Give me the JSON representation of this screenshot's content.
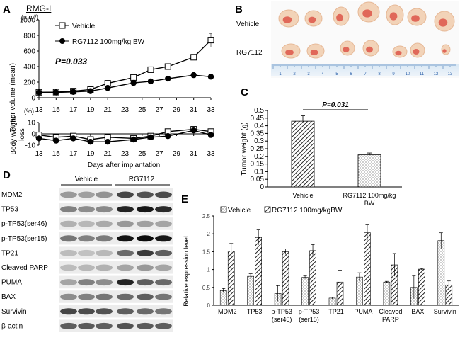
{
  "panels": {
    "a": "A",
    "b": "B",
    "c": "C",
    "d": "D",
    "e": "E"
  },
  "colors": {
    "line_dark": "#000000",
    "bar_gray": "#555555",
    "blot_bg": "#f2f2f2"
  },
  "panel_a": {
    "cell_line": "RMG-I",
    "units": "(mm³)",
    "ylabel": "Tumor volume (mean)",
    "legend_vehicle": "Vehicle",
    "legend_rg": "RG7112 100mg/kg BW",
    "pvalue": "P=0.033",
    "bw_units": "(%)",
    "bw_ylabel": "Body weight loss",
    "xlabel": "Days after implantation"
  },
  "panel_b": {
    "row_vehicle": "Vehicle",
    "row_rg": "RG7112",
    "ruler_numbers": [
      "1",
      "2",
      "3",
      "4",
      "5",
      "6",
      "7",
      "8",
      "9",
      "10",
      "11",
      "12",
      "13"
    ]
  },
  "panel_c": {
    "ylabel": "Tumor weight (g)",
    "pvalue": "P=0.031",
    "cat_vehicle": "Vehicle",
    "cat_rg_line1": "RG7112 100mg/kg",
    "cat_rg_line2": "BW"
  },
  "panel_d": {
    "group_vehicle": "Vehicle",
    "group_rg": "RG7112",
    "proteins": [
      "MDM2",
      "TP53",
      "p-TP53(ser46)",
      "p-TP53(ser15)",
      "TP21",
      "Cleaved PARP",
      "PUMA",
      "BAX",
      "Survivin",
      "β-actin"
    ]
  },
  "panel_e": {
    "ylabel": "Relative expression level",
    "legend_vehicle": "Vehicle",
    "legend_rg": "RG7112 100mg/kgBW",
    "xlabels": [
      [
        "MDM2"
      ],
      [
        "TP53"
      ],
      [
        "p-TP53",
        "(ser46)"
      ],
      [
        "p-TP53",
        "(ser15)"
      ],
      [
        "TP21"
      ],
      [
        "PUMA"
      ],
      [
        "Cleaved",
        "PARP"
      ],
      [
        "BAX"
      ],
      [
        "Survivin"
      ]
    ]
  },
  "chart_data": [
    {
      "id": "tumor-volume",
      "type": "line",
      "xlabel": "Days after implantation",
      "ylabel": "Tumor volume (mean) (mm³)",
      "x": [
        13,
        15,
        17,
        19,
        21,
        23,
        25,
        27,
        29,
        31,
        33
      ],
      "xticks": [
        13,
        15,
        17,
        19,
        21,
        23,
        25,
        27,
        29,
        31,
        33
      ],
      "xlim": [
        13,
        33
      ],
      "ylim": [
        0,
        1000
      ],
      "yticks": [
        0,
        200,
        400,
        600,
        800,
        1000
      ],
      "series": [
        {
          "name": "Vehicle",
          "marker": "open-square",
          "values": [
            70,
            72,
            85,
            105,
            185,
            260,
            360,
            400,
            520,
            740
          ],
          "x": [
            13,
            15,
            17,
            19,
            21,
            24,
            26,
            28,
            31,
            33
          ],
          "err": [
            10,
            10,
            12,
            15,
            20,
            25,
            30,
            30,
            35,
            85
          ]
        },
        {
          "name": "RG7112 100mg/kg BW",
          "marker": "filled-circle",
          "values": [
            68,
            68,
            75,
            85,
            125,
            190,
            210,
            245,
            290,
            270
          ],
          "x": [
            13,
            15,
            17,
            19,
            21,
            24,
            26,
            28,
            31,
            33
          ],
          "err": [
            8,
            8,
            8,
            10,
            12,
            12,
            12,
            12,
            15,
            18
          ]
        }
      ],
      "annotation": "P=0.033"
    },
    {
      "id": "body-weight-loss",
      "type": "line",
      "ylabel": "Body weight loss (%)",
      "x": [
        13,
        15,
        17,
        19,
        21,
        23,
        25,
        27,
        29,
        31,
        33
      ],
      "ylim": [
        -10,
        10
      ],
      "yticks": [
        -10,
        0,
        10
      ],
      "series": [
        {
          "name": "Vehicle",
          "marker": "open-square",
          "x": [
            13,
            15,
            17,
            19,
            21,
            24,
            26,
            28,
            31,
            33
          ],
          "values": [
            -1,
            -3,
            -2,
            -5,
            -3,
            -4,
            -2,
            2,
            4,
            2
          ],
          "err": [
            2,
            2,
            2,
            2,
            2,
            2,
            2,
            2,
            2,
            2
          ]
        },
        {
          "name": "RG7112 100mg/kg BW",
          "marker": "filled-circle",
          "x": [
            13,
            15,
            17,
            19,
            21,
            24,
            26,
            28,
            31,
            33
          ],
          "values": [
            -4,
            -6,
            -4,
            -7,
            -7,
            -5,
            -3,
            -2,
            3,
            -1
          ],
          "err": [
            2,
            2,
            2,
            2,
            2,
            2,
            2,
            2,
            2,
            2
          ]
        }
      ]
    },
    {
      "id": "tumor-weight",
      "type": "bar",
      "categories": [
        "Vehicle",
        "RG7112 100mg/kg BW"
      ],
      "values": [
        0.43,
        0.21
      ],
      "err": [
        0.035,
        0.012
      ],
      "ylabel": "Tumor weight (g)",
      "ylim": [
        0,
        0.5
      ],
      "yticks": [
        0,
        0.05,
        0.1,
        0.15,
        0.2,
        0.25,
        0.3,
        0.35,
        0.4,
        0.45,
        0.5
      ],
      "annotation": "P=0.031"
    },
    {
      "id": "relative-expression",
      "type": "bar",
      "categories": [
        "MDM2",
        "TP53",
        "p-TP53 (ser46)",
        "p-TP53 (ser15)",
        "TP21",
        "PUMA",
        "Cleaved PARP",
        "BAX",
        "Survivin"
      ],
      "ylabel": "Relative expression level",
      "ylim": [
        0,
        2.5
      ],
      "yticks": [
        0,
        0.5,
        1,
        1.5,
        2,
        2.5
      ],
      "series": [
        {
          "name": "Vehicle",
          "pattern": "dotted",
          "values": [
            0.41,
            0.81,
            0.33,
            0.78,
            0.2,
            0.79,
            0.65,
            0.5,
            1.81
          ],
          "err": [
            0.06,
            0.07,
            0.22,
            0.04,
            0.03,
            0.12,
            0.02,
            0.32,
            0.22
          ]
        },
        {
          "name": "RG7112 100mg/kgBW",
          "pattern": "hatched",
          "values": [
            1.52,
            1.9,
            1.5,
            1.53,
            0.65,
            2.03,
            1.13,
            1.01,
            0.57
          ],
          "err": [
            0.21,
            0.21,
            0.08,
            0.17,
            0.33,
            0.22,
            0.32,
            0.02,
            0.11
          ]
        }
      ]
    }
  ]
}
